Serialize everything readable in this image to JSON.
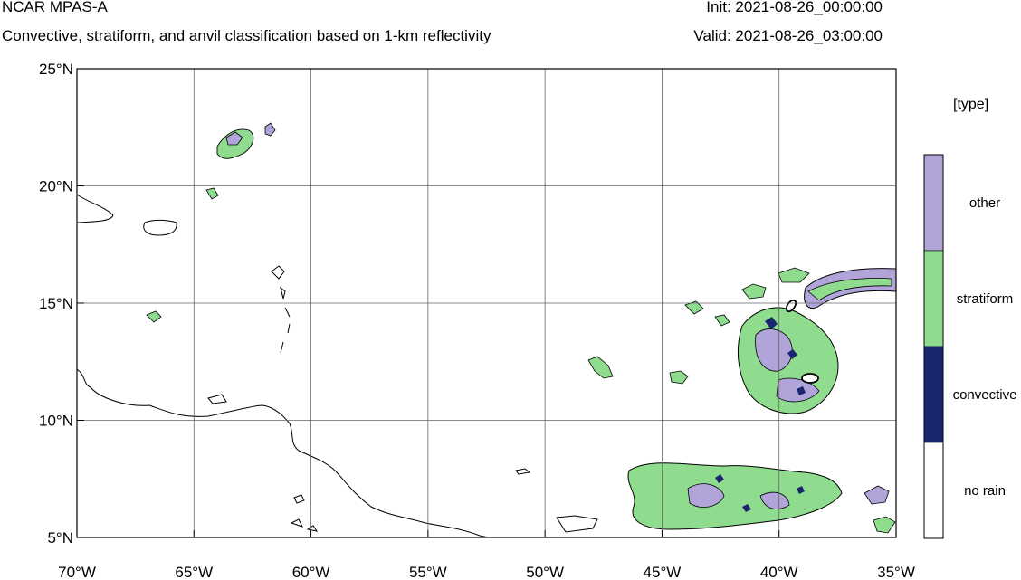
{
  "header": {
    "model": "NCAR MPAS-A",
    "description": "Convective, stratiform, and anvil classification based on 1-km reflectivity",
    "init": "Init: 2021-08-26_00:00:00",
    "valid": "Valid: 2021-08-26_03:00:00"
  },
  "map": {
    "lon_range": [
      -70,
      -35
    ],
    "lat_range": [
      5,
      25
    ],
    "lon_ticks": [
      {
        "value": -70,
        "label": "70°W"
      },
      {
        "value": -65,
        "label": "65°W"
      },
      {
        "value": -60,
        "label": "60°W"
      },
      {
        "value": -55,
        "label": "55°W"
      },
      {
        "value": -50,
        "label": "50°W"
      },
      {
        "value": -45,
        "label": "45°W"
      },
      {
        "value": -40,
        "label": "40°W"
      },
      {
        "value": -35,
        "label": "35°W"
      }
    ],
    "lat_ticks": [
      {
        "value": 25,
        "label": "25°N"
      },
      {
        "value": 20,
        "label": "20°N"
      },
      {
        "value": 15,
        "label": "15°N"
      },
      {
        "value": 10,
        "label": "10°N"
      },
      {
        "value": 5,
        "label": "5°N"
      }
    ],
    "grid": true,
    "colors": {
      "stratiform": "#8fdc8f",
      "other": "#b0a4d8",
      "convective": "#1b2670",
      "coast": "#000000"
    }
  },
  "legend": {
    "title": "[type]",
    "placement": "right",
    "items": [
      {
        "label": "other",
        "color": "#b0a4d8"
      },
      {
        "label": "stratiform",
        "color": "#8fdc8f"
      },
      {
        "label": "convective",
        "color": "#1b2670"
      },
      {
        "label": "no rain",
        "color": "#ffffff"
      }
    ]
  }
}
